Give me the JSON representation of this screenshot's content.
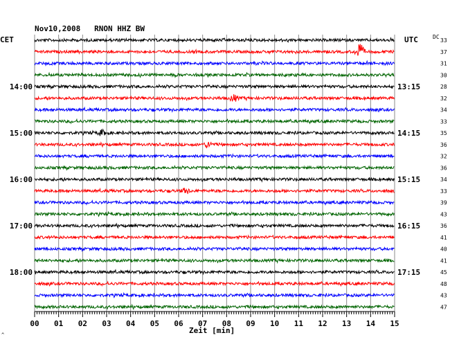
{
  "chart_data": {
    "type": "seismogram",
    "title": "Nov10,2008   RNON HHZ BW",
    "left_label": "CET",
    "right_label": "UTC",
    "dc_label": "DC",
    "xlabel": "Zeit [min]",
    "xlim": [
      0,
      15
    ],
    "x_ticks": [
      "00",
      "01",
      "02",
      "03",
      "04",
      "05",
      "06",
      "07",
      "08",
      "09",
      "10",
      "11",
      "12",
      "13",
      "14",
      "15"
    ],
    "trace_colors": [
      "#000000",
      "#ff0000",
      "#0000ff",
      "#006400"
    ],
    "dc_values": [
      33,
      37,
      31,
      30,
      28,
      32,
      34,
      33,
      35,
      36,
      32,
      36,
      34,
      33,
      39,
      43,
      36,
      41,
      40,
      41,
      45,
      48,
      43,
      47
    ],
    "left_time_labels": [
      {
        "trace": 4,
        "label": "14:00"
      },
      {
        "trace": 8,
        "label": "15:00"
      },
      {
        "trace": 12,
        "label": "16:00"
      },
      {
        "trace": 16,
        "label": "17:00"
      },
      {
        "trace": 20,
        "label": "18:00"
      }
    ],
    "right_time_labels": [
      {
        "trace": 4,
        "label": "13:15"
      },
      {
        "trace": 8,
        "label": "14:15"
      },
      {
        "trace": 12,
        "label": "15:15"
      },
      {
        "trace": 16,
        "label": "16:15"
      },
      {
        "trace": 20,
        "label": "17:15"
      }
    ],
    "events": [
      {
        "trace": 1,
        "minute": 13.55,
        "amplitude": 2.6
      },
      {
        "trace": 5,
        "minute": 8.3,
        "amplitude": 1.0
      },
      {
        "trace": 9,
        "minute": 7.25,
        "amplitude": 0.9
      },
      {
        "trace": 8,
        "minute": 2.8,
        "amplitude": 0.8
      },
      {
        "trace": 13,
        "minute": 6.3,
        "amplitude": 0.7
      }
    ],
    "grid": true
  }
}
